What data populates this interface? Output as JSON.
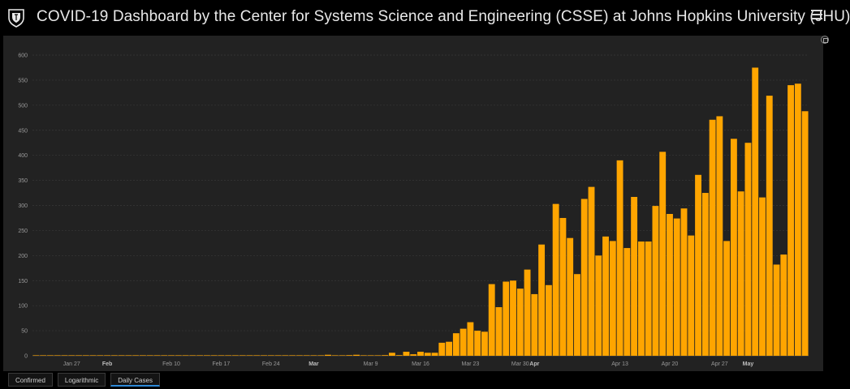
{
  "header": {
    "title": "COVID-19 Dashboard by the Center for Systems Science and Engineering (CSSE) at Johns Hopkins University (JHU)"
  },
  "tabs": [
    {
      "label": "Confirmed",
      "active": false
    },
    {
      "label": "Logarithmic",
      "active": false
    },
    {
      "label": "Daily Cases",
      "active": true
    }
  ],
  "colors": {
    "bar": "#ffa500",
    "background": "#222222"
  },
  "chart_data": {
    "type": "bar",
    "title": "",
    "xlabel": "",
    "ylabel": "",
    "ylim": [
      0,
      600
    ],
    "yticks": [
      0,
      50,
      100,
      150,
      200,
      250,
      300,
      350,
      400,
      450,
      500,
      550,
      600
    ],
    "grid": true,
    "start_date": "2020-01-22",
    "x_tick_labels": [
      {
        "label": "Jan 27",
        "date": "2020-01-27",
        "bold": false
      },
      {
        "label": "Feb",
        "date": "2020-02-01",
        "bold": true
      },
      {
        "label": "Feb 10",
        "date": "2020-02-10",
        "bold": false
      },
      {
        "label": "Feb 17",
        "date": "2020-02-17",
        "bold": false
      },
      {
        "label": "Feb 24",
        "date": "2020-02-24",
        "bold": false
      },
      {
        "label": "Mar",
        "date": "2020-03-01",
        "bold": true
      },
      {
        "label": "Mar 9",
        "date": "2020-03-09",
        "bold": false
      },
      {
        "label": "Mar 16",
        "date": "2020-03-16",
        "bold": false
      },
      {
        "label": "Mar 23",
        "date": "2020-03-23",
        "bold": false
      },
      {
        "label": "Mar 30",
        "date": "2020-03-30",
        "bold": false
      },
      {
        "label": "Apr",
        "date": "2020-04-01",
        "bold": true
      },
      {
        "label": "Apr 13",
        "date": "2020-04-13",
        "bold": false
      },
      {
        "label": "Apr 20",
        "date": "2020-04-20",
        "bold": false
      },
      {
        "label": "Apr 27",
        "date": "2020-04-27",
        "bold": false
      },
      {
        "label": "May",
        "date": "2020-05-01",
        "bold": true
      }
    ],
    "values": [
      0,
      0,
      0,
      0,
      0,
      0,
      0,
      0,
      0,
      0,
      0,
      0,
      0,
      0,
      0,
      0,
      0,
      0,
      0,
      0,
      0,
      0,
      0,
      0,
      0,
      0,
      0,
      0,
      0,
      0,
      0,
      0,
      0,
      0,
      0,
      0,
      0,
      0,
      0,
      0,
      0,
      2,
      0,
      0,
      1,
      2,
      0,
      0,
      0,
      1,
      6,
      1,
      8,
      3,
      8,
      6,
      6,
      26,
      28,
      45,
      54,
      67,
      50,
      48,
      143,
      97,
      148,
      150,
      134,
      172,
      123,
      222,
      141,
      303,
      275,
      235,
      163,
      313,
      337,
      200,
      238,
      229,
      390,
      215,
      317,
      228,
      228,
      299,
      407,
      283,
      274,
      294,
      240,
      361,
      325,
      471,
      478,
      229,
      433,
      328,
      425,
      575,
      316,
      519,
      182,
      202,
      540,
      543,
      488
    ]
  }
}
